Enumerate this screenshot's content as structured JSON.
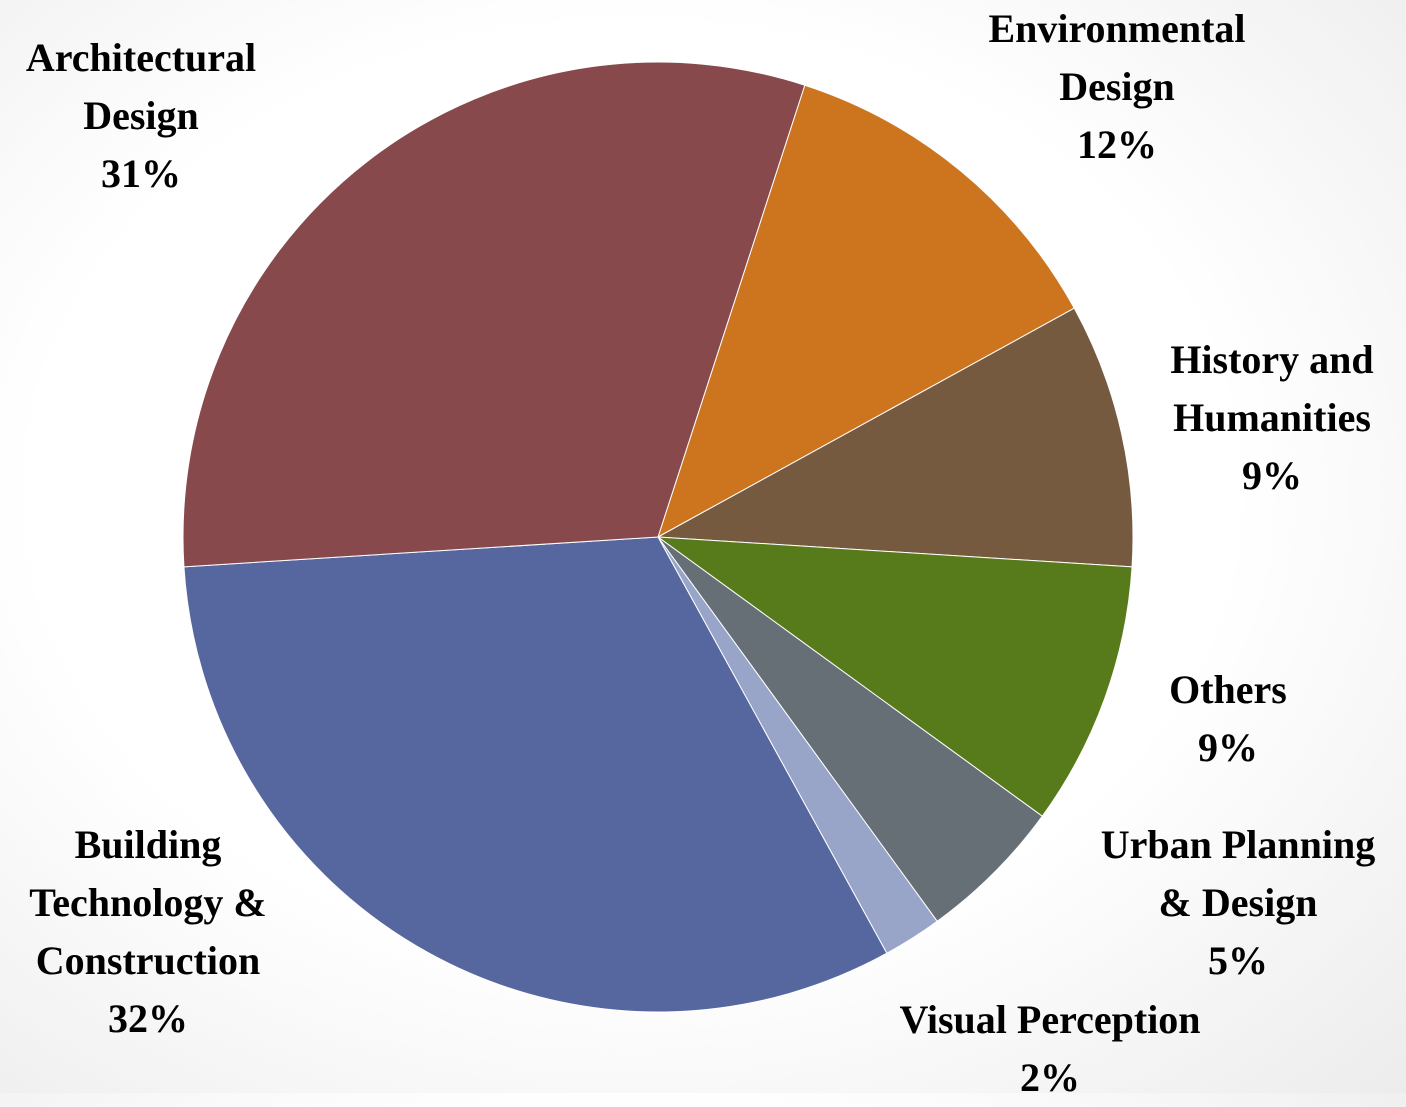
{
  "chart_data": {
    "type": "pie",
    "categories": [
      "Environmental Design",
      "History and Humanities",
      "Others",
      "Urban Planning & Design",
      "Visual Perception",
      "Building Technology & Construction",
      "Architectural Design"
    ],
    "values": [
      12,
      9,
      9,
      5,
      2,
      32,
      31
    ],
    "value_labels": [
      "12%",
      "9%",
      "9%",
      "5%",
      "2%",
      "32%",
      "31%"
    ],
    "colors": [
      "#cc741e",
      "#755a40",
      "#577a1b",
      "#676f76",
      "#98a5c9",
      "#56679f",
      "#87494b"
    ]
  }
}
